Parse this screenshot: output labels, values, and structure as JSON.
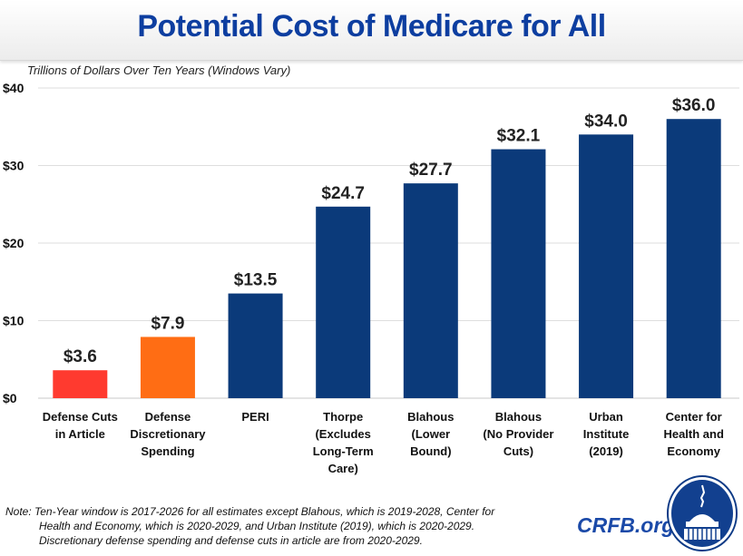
{
  "header": {
    "title": "Potential Cost of Medicare for All"
  },
  "chart_data": {
    "type": "bar",
    "title": "Potential Cost of Medicare for All",
    "subtitle": "Trillions of Dollars Over Ten Years (Windows Vary)",
    "xlabel": "",
    "ylabel": "Trillions of Dollars Over Ten Years (Windows Vary)",
    "ylim": [
      0,
      40
    ],
    "yticks": [
      0,
      10,
      20,
      30,
      40
    ],
    "ytick_labels": [
      "$0",
      "$10",
      "$20",
      "$30",
      "$40"
    ],
    "grid": true,
    "legend": "none",
    "categories": [
      "Defense Cuts in Article",
      "Defense Discretionary Spending",
      "PERI",
      "Thorpe (Excludes Long-Term Care)",
      "Blahous (Lower Bound)",
      "Blahous (No Provider Cuts)",
      "Urban Institute (2019)",
      "Center for Health and Economy"
    ],
    "category_lines": [
      [
        "Defense Cuts",
        "in Article"
      ],
      [
        "Defense",
        "Discretionary",
        "Spending"
      ],
      [
        "PERI"
      ],
      [
        "Thorpe",
        "(Excludes",
        "Long-Term",
        "Care)"
      ],
      [
        "Blahous",
        "(Lower",
        "Bound)"
      ],
      [
        "Blahous",
        "(No Provider",
        "Cuts)"
      ],
      [
        "Urban",
        "Institute",
        "(2019)"
      ],
      [
        "Center for",
        "Health and",
        "Economy"
      ]
    ],
    "values": [
      3.6,
      7.9,
      13.5,
      24.7,
      27.7,
      32.1,
      34.0,
      36.0
    ],
    "data_labels": [
      "$3.6",
      "$7.9",
      "$13.5",
      "$24.7",
      "$27.7",
      "$32.1",
      "$34.0",
      "$36.0"
    ],
    "colors": [
      "#ff3a2f",
      "#ff6d14",
      "#0b3a7a",
      "#0b3a7a",
      "#0b3a7a",
      "#0b3a7a",
      "#0b3a7a",
      "#0b3a7a"
    ]
  },
  "footer": {
    "note_lines": [
      "Note: Ten-Year window is 2017-2026 for all estimates except Blahous, which is 2019-2028, Center for",
      "Health and Economy, which is 2020-2029, and Urban Institute (2019), which is 2020-2029.",
      "Discretionary defense spending and defense cuts in article are from 2020-2029."
    ],
    "brand": "CRFB.org",
    "logo_icon": "capitol-dome-icon"
  }
}
